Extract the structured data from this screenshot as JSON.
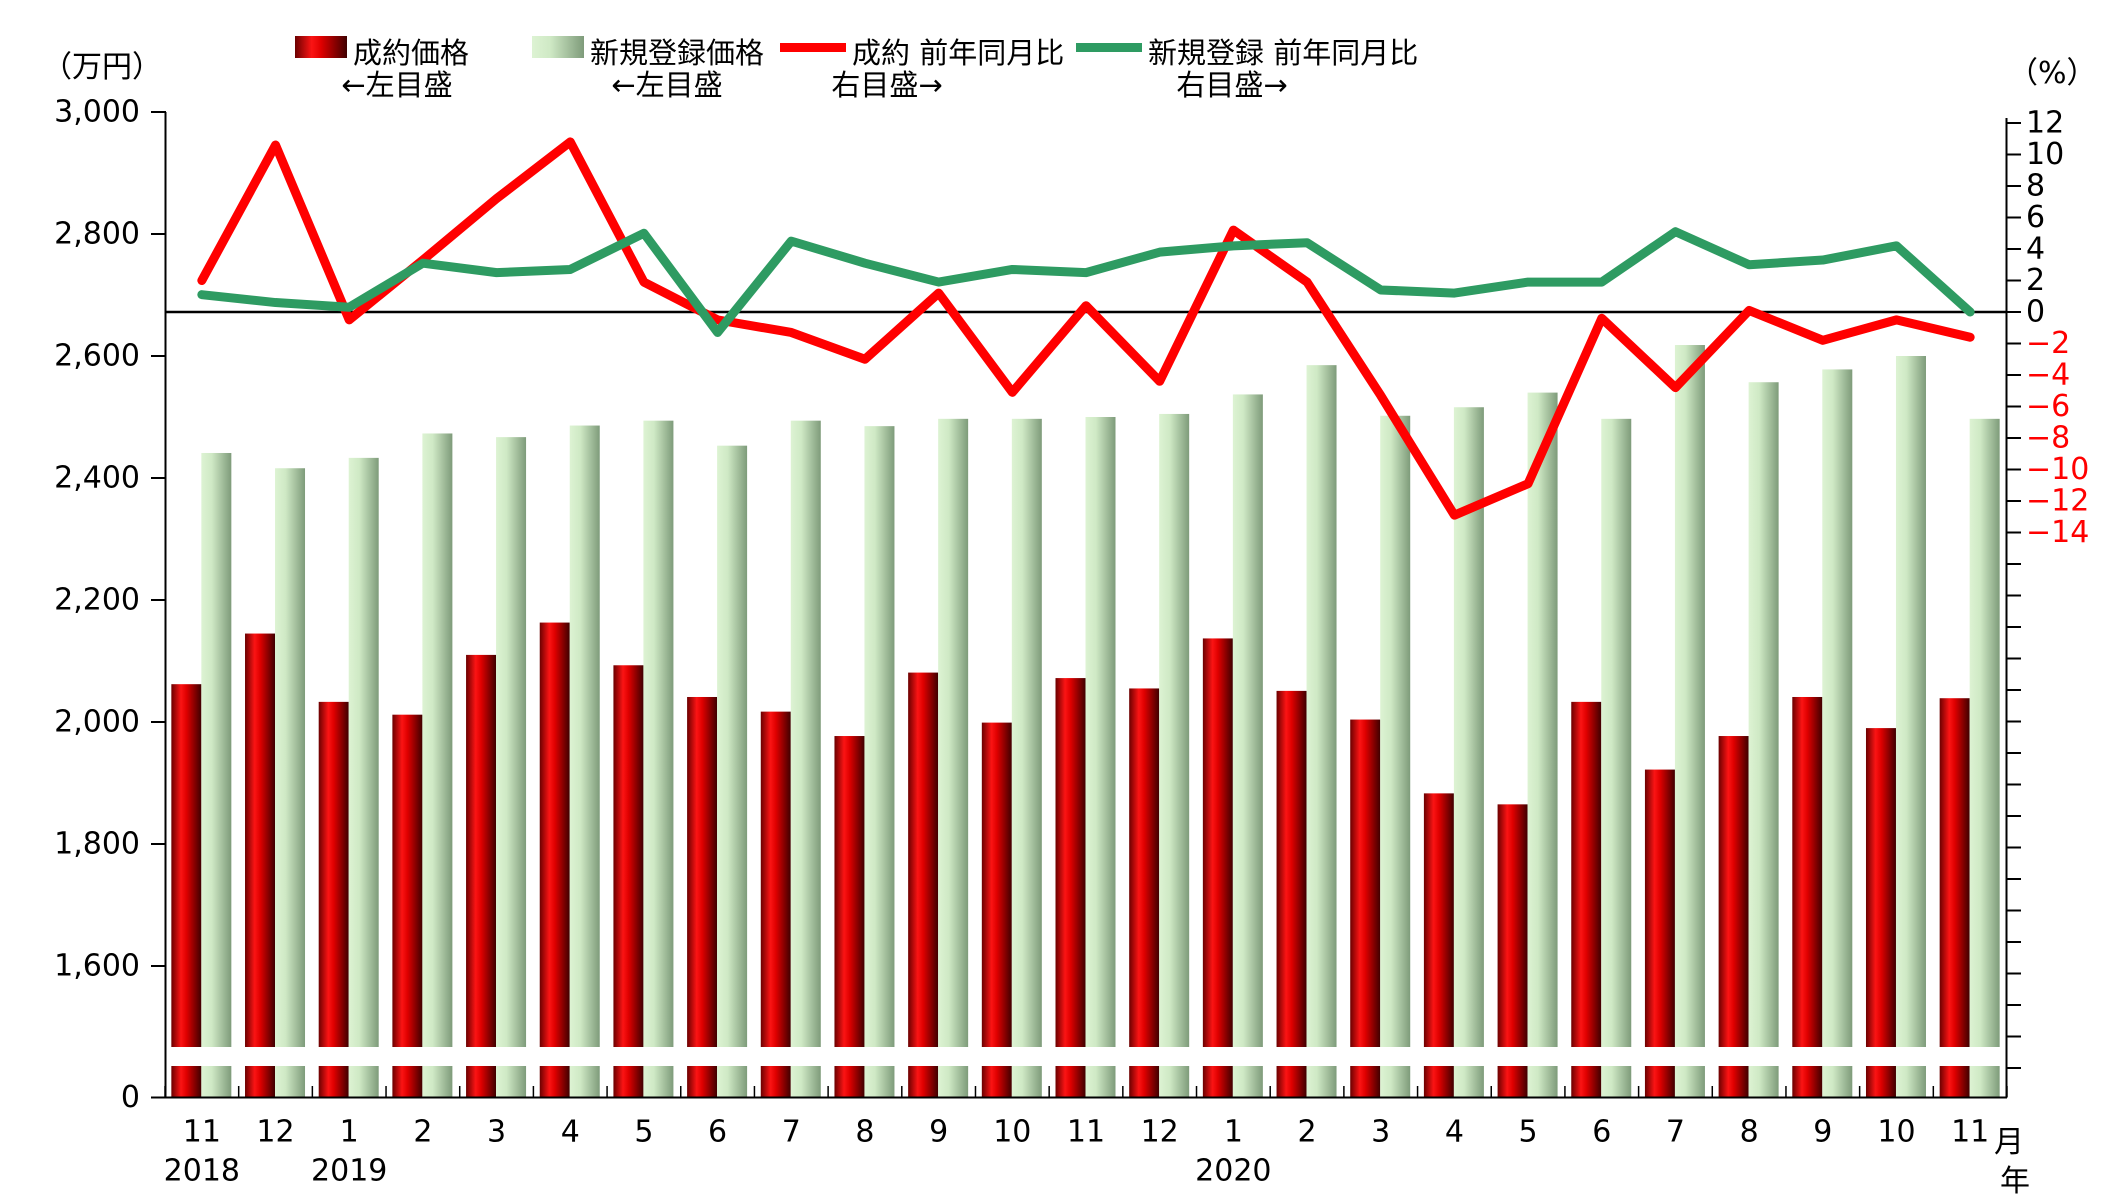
{
  "chart_data": {
    "type": "combo",
    "unit_left": "（万円）",
    "unit_right": "（%）",
    "x_suffix": "月",
    "year_suffix": "年",
    "grid": false,
    "axis_break": true,
    "left_axis_range_top": [
      1600,
      3000
    ],
    "right_axis_range": [
      -14,
      12
    ],
    "categories": [
      "11",
      "12",
      "1",
      "2",
      "3",
      "4",
      "5",
      "6",
      "7",
      "8",
      "9",
      "10",
      "11",
      "12",
      "1",
      "2",
      "3",
      "4",
      "5",
      "6",
      "7",
      "8",
      "9",
      "10",
      "11"
    ],
    "year_markers": [
      {
        "index": 0,
        "label": "2018"
      },
      {
        "index": 2,
        "label": "2019"
      },
      {
        "index": 14,
        "label": "2020"
      }
    ],
    "left_ticks": [
      {
        "v": 3000,
        "label": "3,000"
      },
      {
        "v": 2800,
        "label": "2,800"
      },
      {
        "v": 2600,
        "label": "2,600"
      },
      {
        "v": 2400,
        "label": "2,400"
      },
      {
        "v": 2200,
        "label": "2,200"
      },
      {
        "v": 2000,
        "label": "2,000"
      },
      {
        "v": 1800,
        "label": "1,800"
      },
      {
        "v": 1600,
        "label": "1,600"
      },
      {
        "v": 0,
        "label": "0"
      }
    ],
    "right_ticks": [
      {
        "v": 12,
        "label": "12"
      },
      {
        "v": 10,
        "label": "10"
      },
      {
        "v": 8,
        "label": "8"
      },
      {
        "v": 6,
        "label": "6"
      },
      {
        "v": 4,
        "label": "4"
      },
      {
        "v": 2,
        "label": "2"
      },
      {
        "v": 0,
        "label": "0"
      },
      {
        "v": -2,
        "label": "−2"
      },
      {
        "v": -4,
        "label": "−4"
      },
      {
        "v": -6,
        "label": "−6"
      },
      {
        "v": -8,
        "label": "−8"
      },
      {
        "v": -10,
        "label": "−10"
      },
      {
        "v": -12,
        "label": "−12"
      },
      {
        "v": -14,
        "label": "−14"
      }
    ],
    "series": [
      {
        "name": "成約価格",
        "sublabel": "←左目盛",
        "type": "bar",
        "axis": "left",
        "color_key": "red_bar",
        "values": [
          2062,
          2145,
          2033,
          2012,
          2110,
          2163,
          2093,
          2041,
          2017,
          1977,
          2081,
          1999,
          2072,
          2055,
          2137,
          2051,
          2004,
          1883,
          1865,
          2033,
          1922,
          1977,
          2041,
          1990,
          2039
        ]
      },
      {
        "name": "新規登録価格",
        "sublabel": "←左目盛",
        "type": "bar",
        "axis": "left",
        "color_key": "green_bar",
        "values": [
          2441,
          2416,
          2433,
          2473,
          2467,
          2486,
          2494,
          2453,
          2494,
          2485,
          2497,
          2497,
          2500,
          2505,
          2537,
          2585,
          2502,
          2516,
          2540,
          2497,
          2618,
          2557,
          2578,
          2600,
          2497
        ]
      },
      {
        "name": "成約 前年同月比",
        "sublabel": "右目盛→",
        "type": "line",
        "axis": "right",
        "color_key": "red_line",
        "values": [
          2.0,
          10.6,
          -0.5,
          3.3,
          7.2,
          10.8,
          1.9,
          -0.5,
          -1.3,
          -3.0,
          1.2,
          -5.1,
          0.4,
          -4.4,
          5.2,
          1.9,
          -5.3,
          -12.9,
          -10.9,
          -0.4,
          -4.8,
          0.1,
          -1.8,
          -0.5,
          -1.6
        ]
      },
      {
        "name": "新規登録 前年同月比",
        "sublabel": "右目盛→",
        "type": "line",
        "axis": "right",
        "color_key": "green_line",
        "values": [
          1.1,
          0.6,
          0.3,
          3.1,
          2.5,
          2.7,
          5.0,
          -1.3,
          4.5,
          3.1,
          1.9,
          2.7,
          2.5,
          3.8,
          4.2,
          4.4,
          1.4,
          1.2,
          1.9,
          1.9,
          5.1,
          3.0,
          3.3,
          4.2,
          0.0
        ]
      }
    ],
    "colors": {
      "red_bar_dark": "#6b0000",
      "red_bar_bright": "#fb1414",
      "red_bar_mid": "#e00000",
      "red_bar_edge": "#3f0000",
      "green_bar_light": "#ddf3d3",
      "green_bar_mid": "#cfe9c5",
      "green_bar_dark": "#7e9b7a",
      "red_line": "#ff0000",
      "green_line": "#2e9b62",
      "axis": "#000000",
      "negative_label": "#ff0000"
    }
  }
}
